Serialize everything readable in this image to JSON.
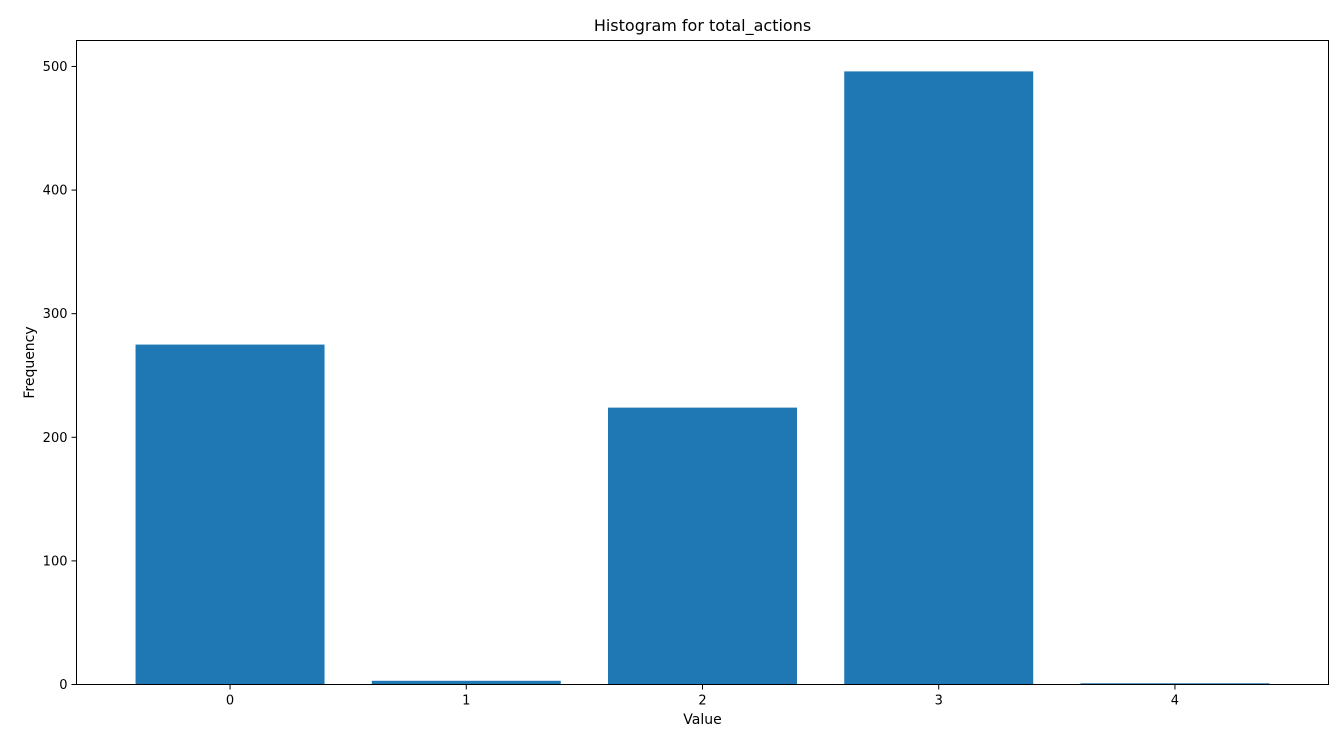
{
  "chart_data": {
    "type": "bar",
    "title": "Histogram for total_actions",
    "xlabel": "Value",
    "ylabel": "Frequency",
    "categories": [
      "0",
      "1",
      "2",
      "3",
      "4"
    ],
    "x": [
      0,
      1,
      2,
      3,
      4
    ],
    "values": [
      275,
      3,
      224,
      496,
      1
    ],
    "ylim": [
      0,
      521
    ],
    "xlim": [
      -0.65,
      4.65
    ],
    "yticks": [
      0,
      100,
      200,
      300,
      400,
      500
    ],
    "grid": false,
    "legend": "none",
    "bar_color": "#1f77b4"
  }
}
